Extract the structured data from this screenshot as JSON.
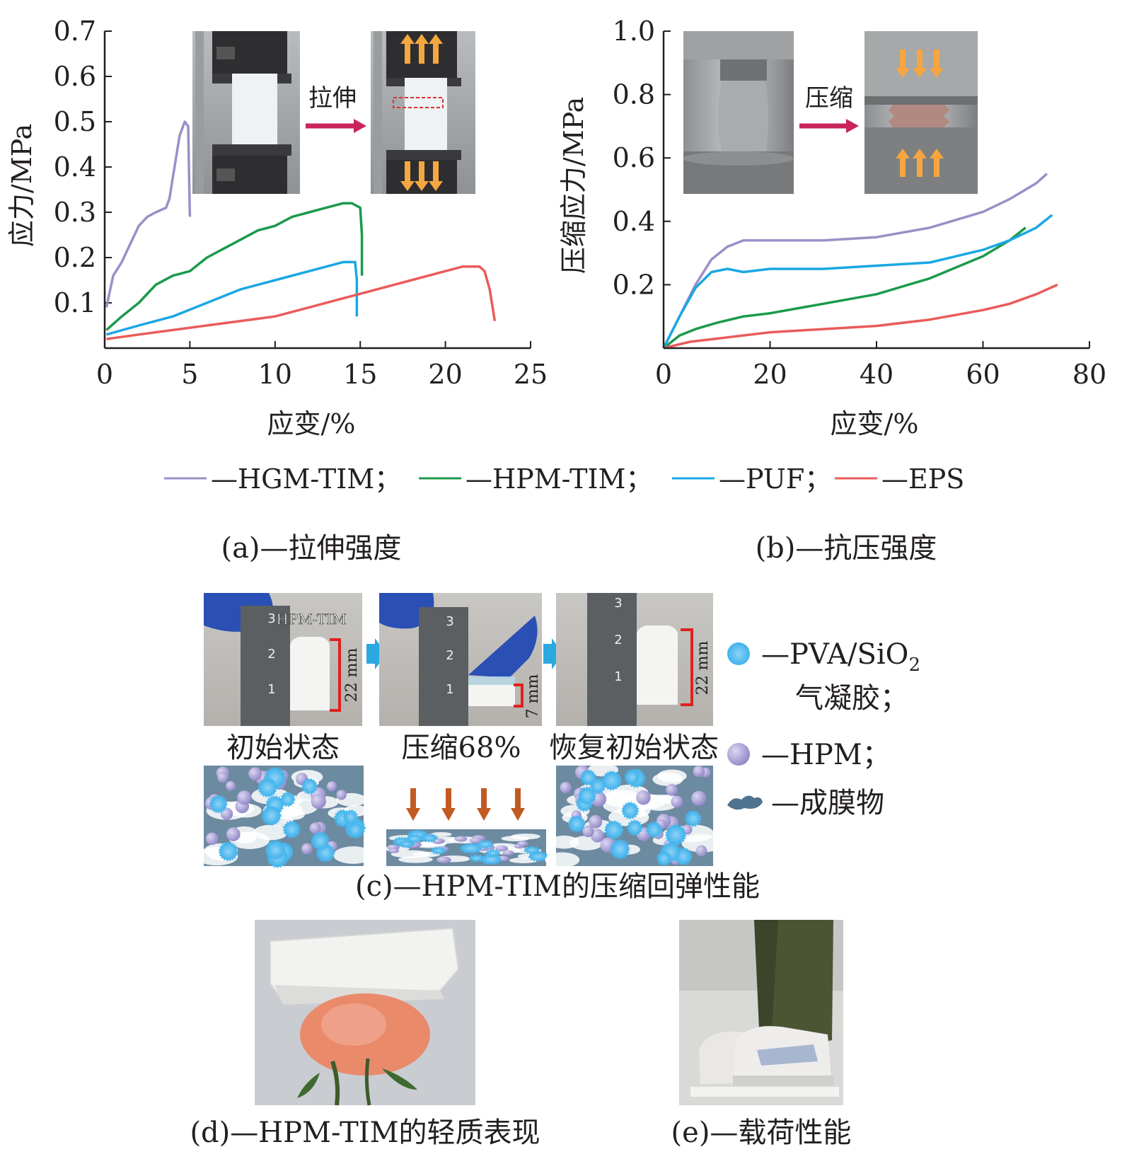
{
  "colors": {
    "HGM-TIM": "#9b8fc7",
    "HPM-TIM": "#1b9a4b",
    "PUF": "#1aa7e3",
    "EPS": "#ea5b5b",
    "arrow": "#c8235a",
    "flow_arrow": "#2aa9e0",
    "scheme_bg": "#6c8aa0",
    "down_arrow": "#c35a22"
  },
  "chart_data": [
    {
      "id": "a",
      "type": "line",
      "xlabel": "应变/%",
      "ylabel": "应力/MPa",
      "xlim": [
        0,
        25
      ],
      "ylim": [
        0,
        0.7
      ],
      "xticks": [
        "0",
        "5",
        "10",
        "15",
        "20",
        "25"
      ],
      "yticks": [
        "0.1",
        "0.2",
        "0.3",
        "0.4",
        "0.5",
        "0.6",
        "0.7"
      ],
      "series": [
        {
          "name": "HGM-TIM",
          "x": [
            0.1,
            0.5,
            1,
            1.5,
            2,
            2.5,
            3,
            3.6,
            3.8,
            4.1,
            4.4,
            4.7,
            4.9,
            5.0
          ],
          "y": [
            0.09,
            0.16,
            0.19,
            0.23,
            0.27,
            0.29,
            0.3,
            0.31,
            0.33,
            0.4,
            0.47,
            0.5,
            0.49,
            0.29
          ]
        },
        {
          "name": "HPM-TIM",
          "x": [
            0.1,
            1,
            2,
            3,
            4,
            5,
            6,
            7,
            8,
            9,
            10,
            11,
            12,
            13,
            14,
            14.5,
            15,
            15.1,
            15.1
          ],
          "y": [
            0.04,
            0.07,
            0.1,
            0.14,
            0.16,
            0.17,
            0.2,
            0.22,
            0.24,
            0.26,
            0.27,
            0.29,
            0.3,
            0.31,
            0.32,
            0.32,
            0.31,
            0.25,
            0.16
          ]
        },
        {
          "name": "PUF",
          "x": [
            0.1,
            2,
            4,
            6,
            8,
            10,
            12,
            14,
            14.7,
            14.8,
            14.8
          ],
          "y": [
            0.03,
            0.05,
            0.07,
            0.1,
            0.13,
            0.15,
            0.17,
            0.19,
            0.19,
            0.15,
            0.07
          ]
        },
        {
          "name": "EPS",
          "x": [
            0.1,
            2,
            4,
            6,
            8,
            10,
            12,
            14,
            16,
            18,
            20,
            21,
            22,
            22.3,
            22.6,
            22.9
          ],
          "y": [
            0.02,
            0.03,
            0.04,
            0.05,
            0.06,
            0.07,
            0.09,
            0.11,
            0.13,
            0.15,
            0.17,
            0.18,
            0.18,
            0.17,
            0.13,
            0.06
          ]
        }
      ]
    },
    {
      "id": "b",
      "type": "line",
      "xlabel": "应变/%",
      "ylabel": "压缩应力/MPa",
      "xlim": [
        0,
        80
      ],
      "ylim": [
        0,
        1.0
      ],
      "xticks": [
        "0",
        "20",
        "40",
        "60",
        "80"
      ],
      "yticks": [
        "0.2",
        "0.4",
        "0.6",
        "0.8",
        "1.0"
      ],
      "series": [
        {
          "name": "HGM-TIM",
          "x": [
            0,
            3,
            6,
            9,
            12,
            15,
            20,
            30,
            40,
            50,
            60,
            65,
            70,
            72
          ],
          "y": [
            0,
            0.1,
            0.2,
            0.28,
            0.32,
            0.34,
            0.34,
            0.34,
            0.35,
            0.38,
            0.43,
            0.47,
            0.52,
            0.55
          ]
        },
        {
          "name": "HPM-TIM",
          "x": [
            0,
            3,
            6,
            10,
            15,
            20,
            30,
            40,
            50,
            60,
            65,
            68
          ],
          "y": [
            0,
            0.04,
            0.06,
            0.08,
            0.1,
            0.11,
            0.14,
            0.17,
            0.22,
            0.29,
            0.34,
            0.38
          ]
        },
        {
          "name": "PUF",
          "x": [
            0,
            3,
            6,
            9,
            12,
            15,
            20,
            30,
            40,
            50,
            55,
            60,
            65,
            70,
            73
          ],
          "y": [
            0,
            0.1,
            0.19,
            0.24,
            0.25,
            0.24,
            0.25,
            0.25,
            0.26,
            0.27,
            0.29,
            0.31,
            0.34,
            0.38,
            0.42
          ]
        },
        {
          "name": "EPS",
          "x": [
            0,
            5,
            10,
            20,
            30,
            40,
            50,
            60,
            65,
            70,
            74
          ],
          "y": [
            0,
            0.02,
            0.03,
            0.05,
            0.06,
            0.07,
            0.09,
            0.12,
            0.14,
            0.17,
            0.2
          ]
        }
      ]
    }
  ],
  "inset_a": {
    "arrow_label": "拉伸"
  },
  "inset_b": {
    "arrow_label": "压缩"
  },
  "legend": {
    "entries": [
      {
        "label": "—HGM-TIM；",
        "color": "#9b8fc7"
      },
      {
        "label": "—HPM-TIM；",
        "color": "#1b9a4b"
      },
      {
        "label": "—PUF；",
        "color": "#1aa7e3"
      },
      {
        "label": "—EPS",
        "color": "#ea5b5b"
      }
    ]
  },
  "captions": {
    "a": "(a)—拉伸强度",
    "b": "(b)—抗压强度",
    "c": "(c)—HPM-TIM的压缩回弹性能",
    "d": "(d)—HPM-TIM的轻质表现",
    "e": "(e)—载荷性能"
  },
  "panel_c": {
    "photo_tag": "HPM-TIM",
    "states": [
      "初始状态",
      "压缩68%",
      "恢复初始状态"
    ],
    "heights": [
      "22 mm",
      "7 mm",
      "22 mm"
    ],
    "ruler_digits": [
      "1",
      "2",
      "3"
    ],
    "legend": {
      "pva_label": "—PVA/SiO",
      "pva_sub": "2",
      "pva_label2": "气凝胶；",
      "hpm_label": "—HPM；",
      "film_label": "—成膜物"
    }
  }
}
